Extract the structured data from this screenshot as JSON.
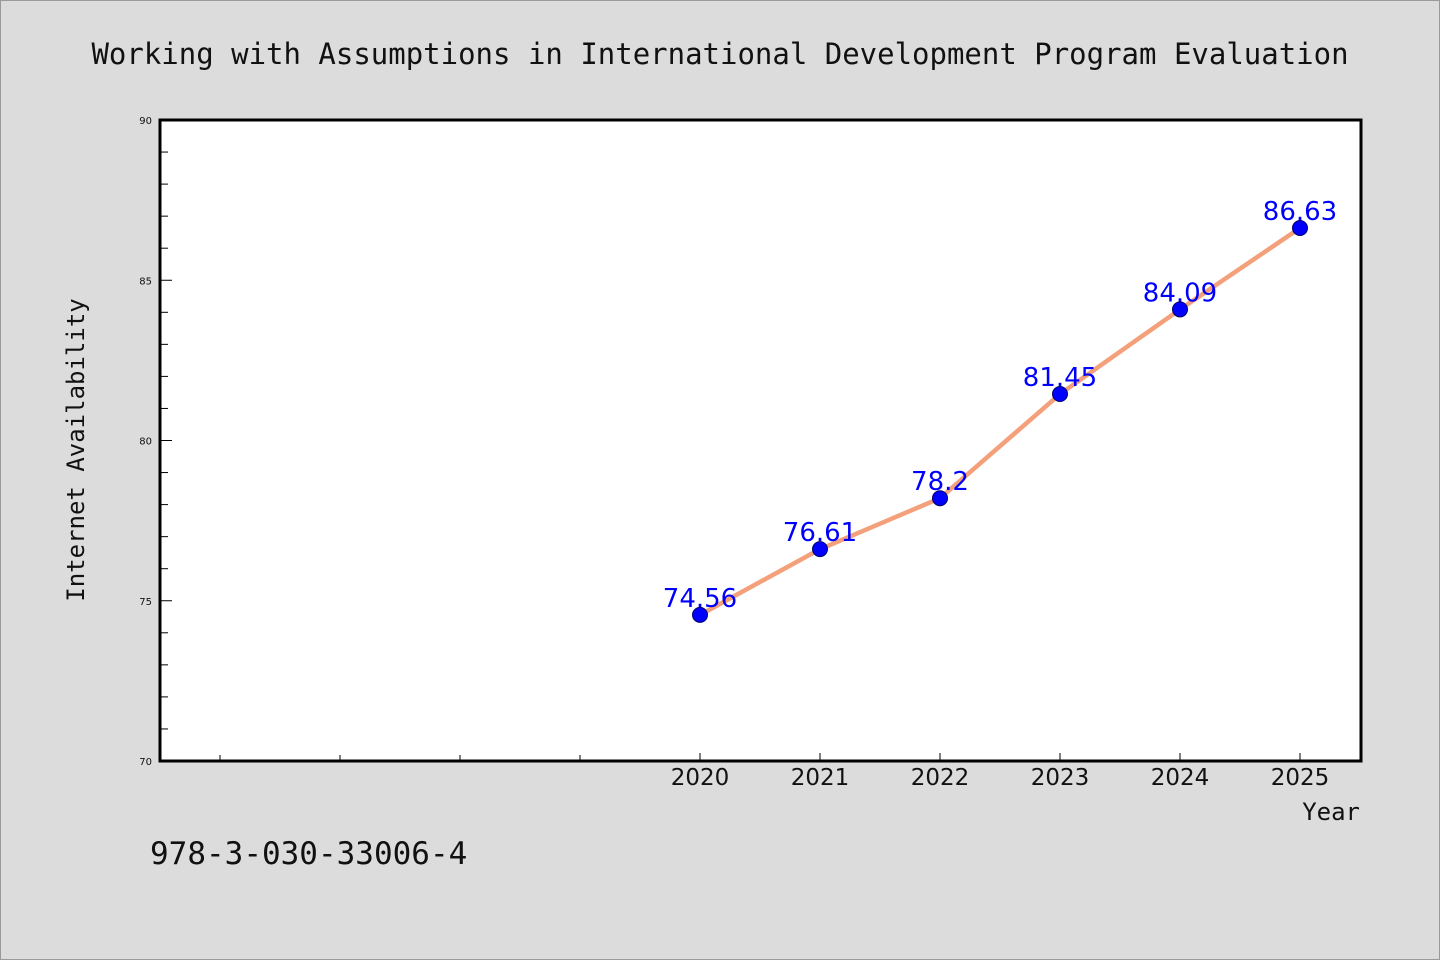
{
  "chart_data": {
    "type": "line",
    "title": "Working with Assumptions in International Development Program Evaluation",
    "xlabel": "Year",
    "ylabel": "Internet Availability",
    "x": [
      "2020",
      "2021",
      "2022",
      "2023",
      "2024",
      "2025"
    ],
    "series": [
      {
        "values": [
          74.56,
          76.61,
          78.2,
          81.45,
          84.09,
          86.63
        ],
        "labels": [
          "74.56",
          "76.61",
          "78.2",
          "81.45",
          "84.09",
          "86.63"
        ]
      }
    ],
    "ylim": [
      70,
      90
    ],
    "yticks": [
      "70",
      "75",
      "80",
      "85",
      "90"
    ],
    "grid": false,
    "legend": "none",
    "colors": {
      "line": "#f4a07a",
      "marker": "#0000ff",
      "data_label": "#0000ff",
      "plot_background": "#ffffff",
      "page_background": "#dcdcdc"
    }
  },
  "footnote": "978-3-030-33006-4"
}
